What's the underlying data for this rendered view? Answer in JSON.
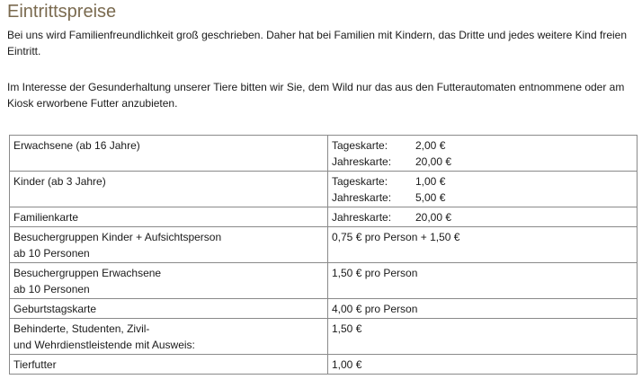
{
  "heading": "Eintrittspreise",
  "intro": {
    "paragraph1": "Bei uns wird Familienfreundlichkeit groß geschrieben. Daher hat bei Familien mit Kindern, das Dritte und jedes weitere Kind freien Eintritt.",
    "paragraph2": "Im Interesse der Gesunderhaltung unserer Tiere bitten wir Sie, dem Wild nur das aus den Futterautomaten entnommene oder am Kiosk erworbene Futter anzubieten."
  },
  "prices": {
    "adults": {
      "label": "Erwachsene (ab 16 Jahre)",
      "day_label": "Tageskarte:",
      "day_price": "2,00 €",
      "year_label": "Jahreskarte:",
      "year_price": "20,00 €"
    },
    "children": {
      "label": "Kinder (ab 3 Jahre)",
      "day_label": "Tageskarte:",
      "day_price": "1,00 €",
      "year_label": "Jahreskarte:",
      "year_price": "5,00 €"
    },
    "family": {
      "label": "Familienkarte",
      "year_label": "Jahreskarte:",
      "year_price": "20,00 €"
    },
    "group_children": {
      "label_line1": "Besuchergruppen Kinder + Aufsichtsperson",
      "label_line2": "ab 10 Personen",
      "price": "0,75 € pro Person + 1,50 €"
    },
    "group_adults": {
      "label_line1": "Besuchergruppen Erwachsene",
      "label_line2": "ab 10 Personen",
      "price": "1,50 € pro Person"
    },
    "birthday": {
      "label": "Geburtstagskarte",
      "price": "4,00 € pro Person"
    },
    "disabled": {
      "label_line1": "Behinderte, Studenten, Zivil-",
      "label_line2": "und Wehrdienstleistende mit Ausweis:",
      "price": "1,50 €"
    },
    "feed": {
      "label": "Tierfutter",
      "price": "1,00 €"
    }
  }
}
